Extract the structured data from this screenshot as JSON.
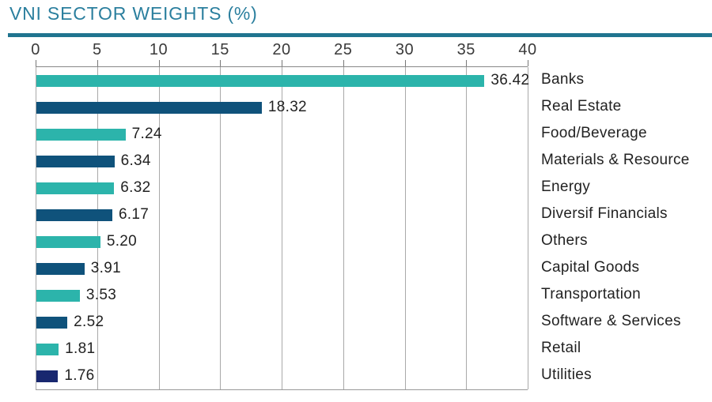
{
  "title": "VNI SECTOR WEIGHTS (%)",
  "colors": {
    "title_text": "#2b7f9e",
    "title_rule": "#20748f",
    "teal_bar": "#2cb4ab",
    "dark_blue_bar": "#0f527b",
    "navy_bar": "#18276f",
    "gridline": "#a9a9a9",
    "axis_text": "#3a3a3a",
    "label_text": "#222222"
  },
  "chart_data": {
    "type": "bar",
    "orientation": "horizontal",
    "title": "VNI SECTOR WEIGHTS (%)",
    "xlabel": "",
    "ylabel": "",
    "xlim": [
      0,
      40
    ],
    "x_ticks": [
      "0",
      "5",
      "10",
      "15",
      "20",
      "25",
      "30",
      "35",
      "40"
    ],
    "x_tick_values": [
      0,
      5,
      10,
      15,
      20,
      25,
      30,
      35,
      40
    ],
    "grid": true,
    "legend": "none",
    "value_label_position": "end-of-bar",
    "category_label_position": "right",
    "rows": [
      {
        "label": "Banks",
        "value": 36.42,
        "display": "36.42",
        "color": "#2cb4ab"
      },
      {
        "label": "Real Estate",
        "value": 18.32,
        "display": "18.32",
        "color": "#0f527b"
      },
      {
        "label": "Food/Beverage",
        "value": 7.24,
        "display": "7.24",
        "color": "#2cb4ab"
      },
      {
        "label": "Materials & Resource",
        "value": 6.34,
        "display": "6.34",
        "color": "#0f527b"
      },
      {
        "label": "Energy",
        "value": 6.32,
        "display": "6.32",
        "color": "#2cb4ab"
      },
      {
        "label": "Diversif Financials",
        "value": 6.17,
        "display": "6.17",
        "color": "#0f527b"
      },
      {
        "label": "Others",
        "value": 5.2,
        "display": "5.20",
        "color": "#2cb4ab"
      },
      {
        "label": "Capital Goods",
        "value": 3.91,
        "display": "3.91",
        "color": "#0f527b"
      },
      {
        "label": "Transportation",
        "value": 3.53,
        "display": "3.53",
        "color": "#2cb4ab"
      },
      {
        "label": "Software & Services",
        "value": 2.52,
        "display": "2.52",
        "color": "#0f527b"
      },
      {
        "label": "Retail",
        "value": 1.81,
        "display": "1.81",
        "color": "#2cb4ab"
      },
      {
        "label": "Utilities",
        "value": 1.76,
        "display": "1.76",
        "color": "#18276f"
      }
    ]
  }
}
